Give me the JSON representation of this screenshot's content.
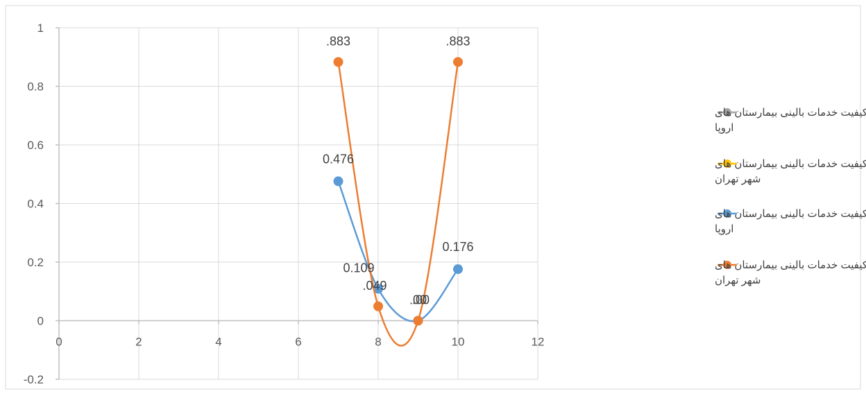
{
  "chart_data": {
    "type": "scatter",
    "xlim": [
      0,
      12
    ],
    "ylim": [
      -0.2,
      1
    ],
    "x_ticks": [
      0,
      2,
      4,
      6,
      8,
      10,
      12
    ],
    "y_ticks": [
      -0.2,
      0,
      0.2,
      0.4,
      0.6,
      0.8,
      1
    ],
    "x_tick_labels": [
      "0",
      "2",
      "4",
      "6",
      "8",
      "10",
      "12"
    ],
    "y_tick_labels": [
      "-0.2",
      "0",
      "0.2",
      "0.4",
      "0.6",
      "0.8",
      "1"
    ],
    "grid": true,
    "smooth_lines": true,
    "legend_position": "right",
    "series": [
      {
        "name": "شاخص کیفیت خدمات بالینی بیمارستان های اروپا",
        "color": "#a5a5a5",
        "x": [],
        "values": [],
        "data_labels": []
      },
      {
        "name": "شاخص کیفیت خدمات بالینی بیمارستان های شهر تهران",
        "color": "#ffc000",
        "x": [],
        "values": [],
        "data_labels": []
      },
      {
        "name": "شاخص کیفیت خدمات بالینی بیمارستان های اروپا",
        "color": "#5b9bd5",
        "x": [
          7,
          8,
          9,
          10
        ],
        "values": [
          0.476,
          0.109,
          0,
          0.176
        ],
        "data_labels": [
          "0.476",
          "0.109",
          ".00",
          "0.176"
        ]
      },
      {
        "name": "شاخص کیفیت خدمات بالینی بیمارستان های شهر تهران",
        "color": "#ed7d31",
        "x": [
          7,
          8,
          9,
          10
        ],
        "values": [
          0.883,
          0.049,
          0,
          0.883
        ],
        "data_labels": [
          ".883",
          ".049",
          ".00",
          ".883"
        ]
      }
    ]
  }
}
